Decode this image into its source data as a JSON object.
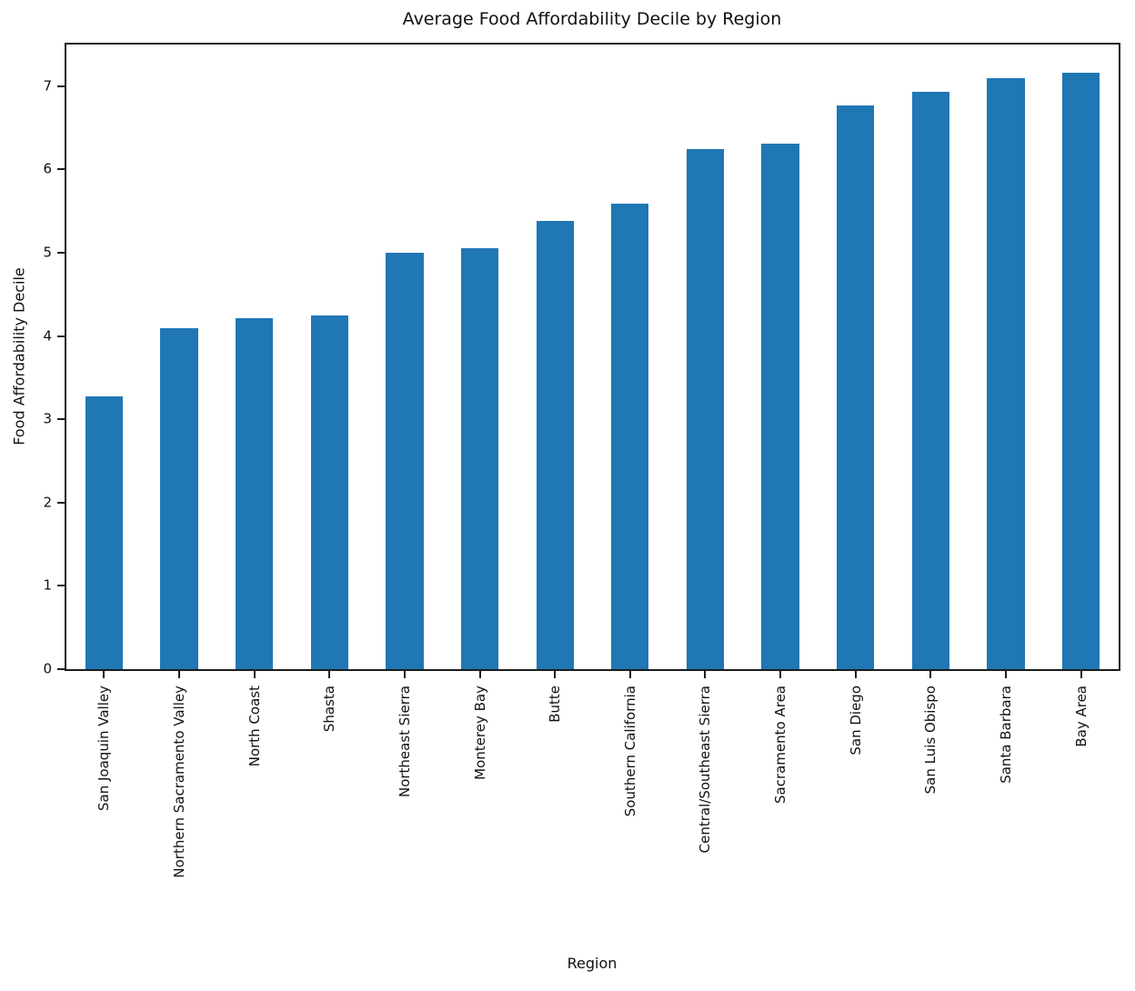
{
  "chart_data": {
    "type": "bar",
    "title": "Average Food Affordability Decile by Region",
    "xlabel": "Region",
    "ylabel": "Food Affordability Decile",
    "categories": [
      "San Joaquin Valley",
      "Northern Sacramento Valley",
      "North Coast",
      "Shasta",
      "Northeast Sierra",
      "Monterey Bay",
      "Butte",
      "Southern California",
      "Central/Southeast Sierra",
      "Sacramento Area",
      "San Diego",
      "San Luis Obispo",
      "Santa Barbara",
      "Bay Area"
    ],
    "values": [
      3.27,
      4.09,
      4.21,
      4.25,
      5.0,
      5.06,
      5.38,
      5.59,
      6.24,
      6.31,
      6.77,
      6.93,
      7.1,
      7.16
    ],
    "ylim": [
      0,
      7.5
    ],
    "yticks": [
      0,
      1,
      2,
      3,
      4,
      5,
      6,
      7
    ],
    "bar_color": "#1f77b4",
    "grid": false,
    "legend": "none",
    "bar_width_fraction": 0.5
  }
}
